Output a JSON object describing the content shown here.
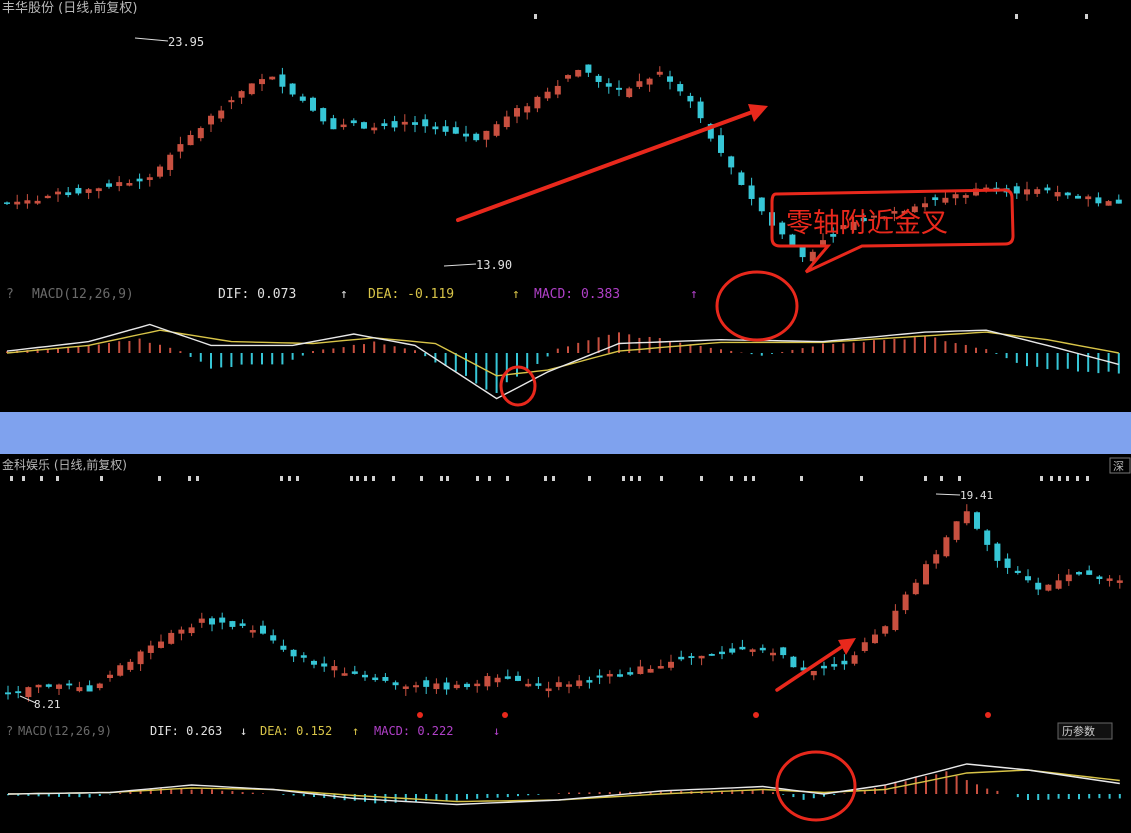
{
  "colors": {
    "background": "#000000",
    "up": "#c85040",
    "down": "#36c6d6",
    "dif_line": "#e8e8e8",
    "dea_line": "#d8c448",
    "macd_label": "#b040c8",
    "annotation": "#e8281c",
    "separator": "#7fa2ee",
    "label_gray": "#b8b8b8"
  },
  "top": {
    "title": "丰华股份 (日线,前复权)",
    "high_label": "23.95",
    "low_label": "13.90",
    "callout_text": "零轴附近金叉",
    "indicator": {
      "help": "?",
      "name": "MACD(12,26,9)",
      "dif_text": "DIF: 0.073",
      "dif_arrow": "↑",
      "dea_text": "DEA: -0.119",
      "dea_arrow": "↑",
      "macd_text": "MACD: 0.383",
      "macd_arrow": "↑"
    }
  },
  "bottom": {
    "title": "金科娱乐 (日线,前复权)",
    "title_right": "深",
    "high_label": "19.41",
    "low_label": "8.21",
    "indicator": {
      "help": "?",
      "name": "MACD(12,26,9)",
      "dif_text": "DIF: 0.263",
      "dif_arrow": "↓",
      "dea_text": "DEA: 0.152",
      "dea_arrow": "↑",
      "macd_text": "MACD: 0.222",
      "macd_arrow": "↓",
      "button": "历参数"
    }
  },
  "chart_data": [
    {
      "type": "candlestick",
      "title": "丰华股份 (日线,前复权)",
      "series_count": 110,
      "ylim": [
        13.9,
        23.95
      ],
      "annotations": [
        "23.95",
        "13.90",
        "零轴附近金叉"
      ],
      "anchors": [
        [
          0,
          16.7
        ],
        [
          8,
          17.3
        ],
        [
          14,
          17.9
        ],
        [
          22,
          21.4
        ],
        [
          26,
          22.4
        ],
        [
          32,
          20.1
        ],
        [
          40,
          20.2
        ],
        [
          46,
          19.6
        ],
        [
          52,
          21.4
        ],
        [
          56,
          22.7
        ],
        [
          60,
          21.6
        ],
        [
          64,
          22.5
        ],
        [
          67,
          21.2
        ],
        [
          70,
          18.8
        ],
        [
          74,
          16.3
        ],
        [
          78,
          14.3
        ],
        [
          82,
          15.7
        ],
        [
          89,
          16.6
        ],
        [
          96,
          17.4
        ],
        [
          103,
          17.1
        ],
        [
          109,
          16.6
        ]
      ]
    },
    {
      "type": "bar+line",
      "title": "MACD(12,26,9)",
      "indicator_values": {
        "DIF": 0.073,
        "DEA": -0.119,
        "MACD": 0.383
      },
      "hist_anchors": [
        [
          0,
          0.05
        ],
        [
          6,
          0.15
        ],
        [
          13,
          0.4
        ],
        [
          17,
          0.05
        ],
        [
          20,
          -0.4
        ],
        [
          27,
          -0.3
        ],
        [
          30,
          0.05
        ],
        [
          36,
          0.3
        ],
        [
          40,
          0.08
        ],
        [
          43,
          -0.4
        ],
        [
          48,
          -1.05
        ],
        [
          52,
          -0.3
        ],
        [
          54,
          0.12
        ],
        [
          60,
          0.55
        ],
        [
          68,
          0.2
        ],
        [
          74,
          -0.08
        ],
        [
          80,
          0.25
        ],
        [
          90,
          0.45
        ],
        [
          96,
          0.1
        ],
        [
          100,
          -0.4
        ],
        [
          109,
          -0.55
        ]
      ],
      "dif_anchors": [
        [
          0,
          0.05
        ],
        [
          8,
          0.3
        ],
        [
          14,
          0.75
        ],
        [
          20,
          0.2
        ],
        [
          28,
          0.2
        ],
        [
          34,
          0.5
        ],
        [
          40,
          0.2
        ],
        [
          48,
          -1.2
        ],
        [
          53,
          -0.5
        ],
        [
          60,
          0.25
        ],
        [
          70,
          0.35
        ],
        [
          80,
          0.3
        ],
        [
          90,
          0.55
        ],
        [
          96,
          0.6
        ],
        [
          102,
          0.2
        ],
        [
          109,
          -0.3
        ]
      ],
      "dea_anchors": [
        [
          0,
          0.0
        ],
        [
          8,
          0.2
        ],
        [
          15,
          0.6
        ],
        [
          22,
          0.3
        ],
        [
          30,
          0.25
        ],
        [
          36,
          0.4
        ],
        [
          42,
          0.25
        ],
        [
          48,
          -0.6
        ],
        [
          53,
          -0.45
        ],
        [
          60,
          0.05
        ],
        [
          70,
          0.28
        ],
        [
          80,
          0.28
        ],
        [
          90,
          0.45
        ],
        [
          96,
          0.55
        ],
        [
          102,
          0.35
        ],
        [
          109,
          0.0
        ]
      ]
    },
    {
      "type": "candlestick",
      "title": "金科娱乐 (日线,前复权)",
      "series_count": 110,
      "ylim": [
        8.21,
        19.41
      ],
      "annotations": [
        "19.41",
        "8.21"
      ],
      "anchors": [
        [
          0,
          8.6
        ],
        [
          4,
          9.1
        ],
        [
          8,
          8.9
        ],
        [
          14,
          11.3
        ],
        [
          19,
          12.6
        ],
        [
          24,
          12.2
        ],
        [
          28,
          10.6
        ],
        [
          32,
          10.0
        ],
        [
          38,
          9.2
        ],
        [
          44,
          9.0
        ],
        [
          48,
          9.6
        ],
        [
          52,
          9.0
        ],
        [
          58,
          9.5
        ],
        [
          64,
          10.2
        ],
        [
          70,
          10.9
        ],
        [
          75,
          11.0
        ],
        [
          78,
          9.8
        ],
        [
          82,
          10.4
        ],
        [
          86,
          12.2
        ],
        [
          90,
          15.5
        ],
        [
          94,
          18.6
        ],
        [
          97,
          15.8
        ],
        [
          101,
          14.2
        ],
        [
          104,
          15.2
        ],
        [
          109,
          14.6
        ]
      ]
    },
    {
      "type": "bar+line",
      "title": "MACD(12,26,9)",
      "indicator_values": {
        "DIF": 0.263,
        "DEA": 0.152,
        "MACD": 0.222
      },
      "hist_anchors": [
        [
          0,
          -0.05
        ],
        [
          8,
          -0.12
        ],
        [
          14,
          0.2
        ],
        [
          20,
          0.15
        ],
        [
          30,
          -0.1
        ],
        [
          36,
          -0.3
        ],
        [
          45,
          -0.2
        ],
        [
          55,
          0.05
        ],
        [
          65,
          0.1
        ],
        [
          74,
          0.15
        ],
        [
          78,
          -0.2
        ],
        [
          82,
          0.02
        ],
        [
          86,
          0.3
        ],
        [
          92,
          0.85
        ],
        [
          96,
          0.2
        ],
        [
          100,
          -0.2
        ],
        [
          109,
          -0.15
        ]
      ],
      "dif_anchors": [
        [
          0,
          0.0
        ],
        [
          10,
          0.05
        ],
        [
          18,
          0.3
        ],
        [
          26,
          0.15
        ],
        [
          34,
          -0.15
        ],
        [
          44,
          -0.35
        ],
        [
          54,
          -0.2
        ],
        [
          64,
          0.1
        ],
        [
          74,
          0.25
        ],
        [
          80,
          0.0
        ],
        [
          86,
          0.3
        ],
        [
          94,
          1.0
        ],
        [
          100,
          0.8
        ],
        [
          109,
          0.35
        ]
      ],
      "dea_anchors": [
        [
          0,
          0.0
        ],
        [
          10,
          0.05
        ],
        [
          18,
          0.2
        ],
        [
          26,
          0.15
        ],
        [
          34,
          -0.05
        ],
        [
          44,
          -0.25
        ],
        [
          54,
          -0.2
        ],
        [
          64,
          0.0
        ],
        [
          74,
          0.15
        ],
        [
          80,
          0.05
        ],
        [
          86,
          0.15
        ],
        [
          94,
          0.7
        ],
        [
          100,
          0.8
        ],
        [
          109,
          0.45
        ]
      ]
    }
  ]
}
